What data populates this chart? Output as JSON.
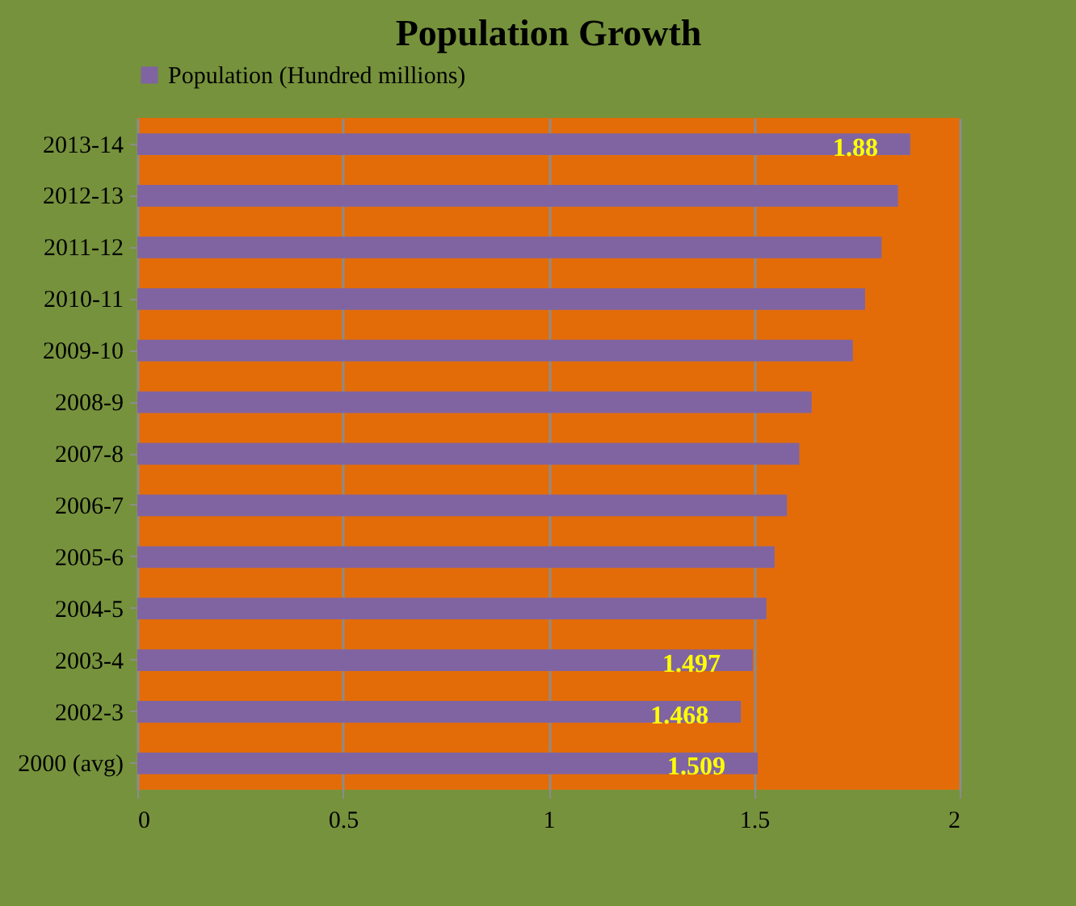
{
  "chart_data": {
    "type": "bar",
    "orientation": "horizontal",
    "title": "Population Growth",
    "categories": [
      "2013-14",
      "2012-13",
      "2011-12",
      "2010-11",
      "2009-10",
      "2008-9",
      "2007-8",
      "2006-7",
      "2005-6",
      "2004-5",
      "2003-4",
      "2002-3",
      "2000 (avg)"
    ],
    "series": [
      {
        "name": "Population (Hundred millions)",
        "color": "#8064a2",
        "values": [
          1.88,
          1.85,
          1.81,
          1.77,
          1.74,
          1.64,
          1.61,
          1.58,
          1.55,
          1.53,
          1.497,
          1.468,
          1.509
        ],
        "value_labels": [
          "1.88",
          null,
          null,
          null,
          null,
          null,
          null,
          null,
          null,
          null,
          "1.497",
          "1.468",
          "1.509"
        ]
      }
    ],
    "xlim": [
      0,
      2
    ],
    "xticks": [
      0,
      0.5,
      1,
      1.5,
      2
    ],
    "grid": "x",
    "legend": "top"
  }
}
